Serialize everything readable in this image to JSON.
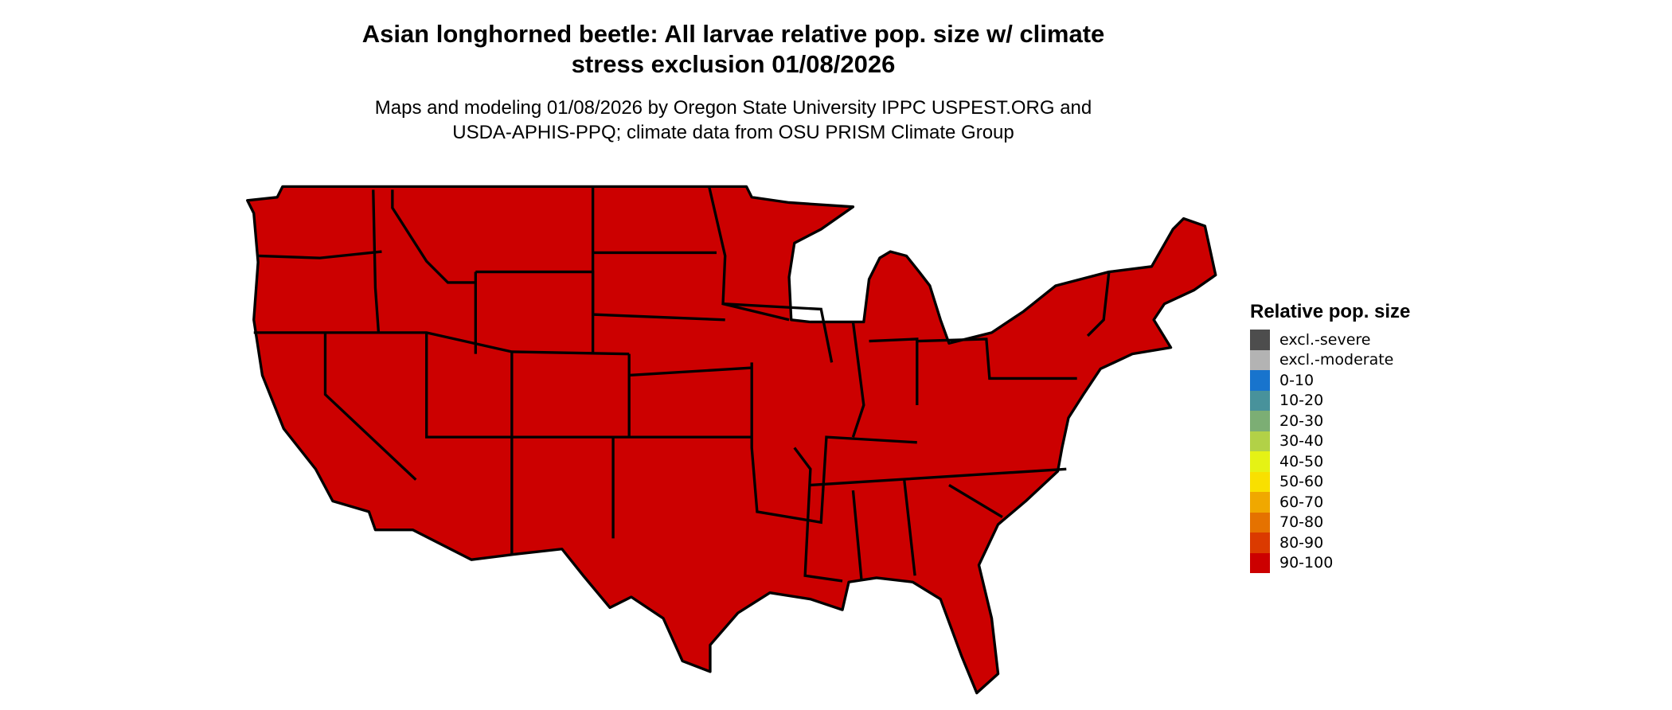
{
  "title_line1": "Asian longhorned beetle: All larvae relative pop. size w/ climate",
  "title_line2": "stress exclusion 01/08/2026",
  "subtitle_line1": "Maps and modeling 01/08/2026 by Oregon State University IPPC USPEST.ORG and",
  "subtitle_line2": "USDA-APHIS-PPQ; climate data from OSU PRISM Climate Group",
  "map": {
    "region": "Contiguous United States",
    "fill_class": "90-100",
    "fill_color": "#CC0000",
    "border_color": "#000000"
  },
  "legend": {
    "title": "Relative pop. size",
    "items": [
      {
        "label": "excl.-severe",
        "color": "#4D4D4D"
      },
      {
        "label": "excl.-moderate",
        "color": "#B3B3B3"
      },
      {
        "label": "0-10",
        "color": "#1874CD"
      },
      {
        "label": "10-20",
        "color": "#48929B"
      },
      {
        "label": "20-30",
        "color": "#7CAE74"
      },
      {
        "label": "30-40",
        "color": "#B2D147"
      },
      {
        "label": "40-50",
        "color": "#E5F215"
      },
      {
        "label": "50-60",
        "color": "#F9E000"
      },
      {
        "label": "60-70",
        "color": "#F0A800"
      },
      {
        "label": "70-80",
        "color": "#E57200"
      },
      {
        "label": "80-90",
        "color": "#DB3A00"
      },
      {
        "label": "90-100",
        "color": "#CC0000"
      }
    ]
  }
}
